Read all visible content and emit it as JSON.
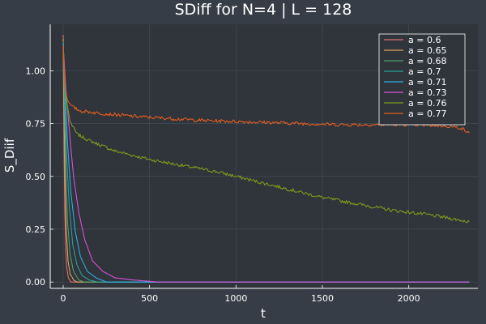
{
  "chart_data": {
    "type": "line",
    "title": "SDiff for N=4 | L = 128",
    "xlabel": "t",
    "ylabel": "S_Diif",
    "xlim": [
      -75,
      2400
    ],
    "ylim": [
      -0.03,
      1.22
    ],
    "xticks": [
      0,
      500,
      1000,
      1500,
      2000
    ],
    "xtick_labels": [
      "0",
      "500",
      "1000",
      "1500",
      "2000"
    ],
    "yticks": [
      0,
      0.25,
      0.5,
      0.75,
      1.0
    ],
    "ytick_labels": [
      "0.00",
      "0.25",
      "0.50",
      "0.75",
      "1.00"
    ],
    "grid": true,
    "legend": "top-right",
    "colors": {
      "background": "#363d47",
      "plot_background": "#30343b",
      "text": "#ffffff",
      "grid": "#46505c"
    },
    "series": [
      {
        "name": "a = 0.6",
        "color": "#e26f73",
        "points": [
          [
            0,
            1.17
          ],
          [
            5,
            0.62
          ],
          [
            10,
            0.32
          ],
          [
            15,
            0.16
          ],
          [
            20,
            0.07
          ],
          [
            30,
            0.02
          ],
          [
            45,
            0.0
          ],
          [
            2350,
            0.0
          ]
        ]
      },
      {
        "name": "a = 0.65",
        "color": "#d9a55c",
        "points": [
          [
            0,
            1.15
          ],
          [
            6,
            0.75
          ],
          [
            12,
            0.42
          ],
          [
            18,
            0.24
          ],
          [
            28,
            0.1
          ],
          [
            40,
            0.04
          ],
          [
            60,
            0.01
          ],
          [
            80,
            0.0
          ],
          [
            2350,
            0.0
          ]
        ]
      },
      {
        "name": "a = 0.68",
        "color": "#4ea06a",
        "points": [
          [
            0,
            1.14
          ],
          [
            8,
            0.82
          ],
          [
            16,
            0.52
          ],
          [
            26,
            0.28
          ],
          [
            40,
            0.13
          ],
          [
            60,
            0.05
          ],
          [
            90,
            0.01
          ],
          [
            120,
            0.0
          ],
          [
            2350,
            0.0
          ]
        ]
      },
      {
        "name": "a = 0.7",
        "color": "#2aa19a",
        "points": [
          [
            0,
            1.13
          ],
          [
            10,
            0.86
          ],
          [
            20,
            0.6
          ],
          [
            35,
            0.36
          ],
          [
            55,
            0.18
          ],
          [
            80,
            0.08
          ],
          [
            110,
            0.03
          ],
          [
            150,
            0.01
          ],
          [
            200,
            0.0
          ],
          [
            2350,
            0.0
          ]
        ]
      },
      {
        "name": "a = 0.71",
        "color": "#2baee0",
        "points": [
          [
            0,
            1.13
          ],
          [
            12,
            0.9
          ],
          [
            25,
            0.66
          ],
          [
            45,
            0.42
          ],
          [
            70,
            0.24
          ],
          [
            100,
            0.12
          ],
          [
            140,
            0.05
          ],
          [
            190,
            0.02
          ],
          [
            250,
            0.0
          ],
          [
            2350,
            0.0
          ]
        ]
      },
      {
        "name": "a = 0.73",
        "color": "#d94fdb",
        "points": [
          [
            0,
            1.12
          ],
          [
            15,
            0.92
          ],
          [
            35,
            0.72
          ],
          [
            60,
            0.5
          ],
          [
            90,
            0.33
          ],
          [
            125,
            0.2
          ],
          [
            170,
            0.1
          ],
          [
            230,
            0.05
          ],
          [
            300,
            0.02
          ],
          [
            400,
            0.01
          ],
          [
            550,
            0.0
          ],
          [
            2350,
            0.0
          ]
        ]
      },
      {
        "name": "a = 0.76",
        "color": "#7a9a1c",
        "points": [
          [
            0,
            1.1
          ],
          [
            15,
            0.88
          ],
          [
            40,
            0.76
          ],
          [
            80,
            0.7
          ],
          [
            150,
            0.67
          ],
          [
            300,
            0.62
          ],
          [
            500,
            0.58
          ],
          [
            700,
            0.55
          ],
          [
            900,
            0.52
          ],
          [
            1100,
            0.48
          ],
          [
            1300,
            0.44
          ],
          [
            1500,
            0.4
          ],
          [
            1700,
            0.37
          ],
          [
            1900,
            0.34
          ],
          [
            2100,
            0.32
          ],
          [
            2250,
            0.3
          ],
          [
            2350,
            0.285
          ]
        ]
      },
      {
        "name": "a = 0.77",
        "color": "#e25d1e",
        "points": [
          [
            0,
            1.12
          ],
          [
            10,
            0.92
          ],
          [
            25,
            0.86
          ],
          [
            50,
            0.83
          ],
          [
            100,
            0.81
          ],
          [
            200,
            0.8
          ],
          [
            400,
            0.785
          ],
          [
            600,
            0.775
          ],
          [
            800,
            0.765
          ],
          [
            1000,
            0.76
          ],
          [
            1200,
            0.755
          ],
          [
            1400,
            0.75
          ],
          [
            1600,
            0.745
          ],
          [
            1800,
            0.745
          ],
          [
            2000,
            0.745
          ],
          [
            2200,
            0.74
          ],
          [
            2300,
            0.73
          ],
          [
            2350,
            0.705
          ]
        ]
      }
    ]
  }
}
